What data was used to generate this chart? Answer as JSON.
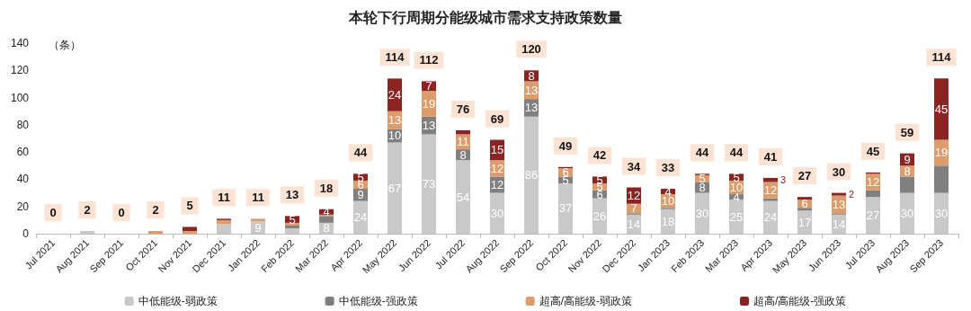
{
  "chart_data": {
    "type": "bar",
    "title": "本轮下行周期分能级城市需求支持政策数量",
    "ylabel": "（条）",
    "stacked": true,
    "legend": "bottom",
    "grid": false,
    "categories": [
      "Jul 2021",
      "Aug 2021",
      "Sep 2021",
      "Oct 2021",
      "Nov 2021",
      "Dec 2021",
      "Jan 2022",
      "Feb 2022",
      "Mar 2022",
      "Apr 2022",
      "May 2022",
      "Jun 2022",
      "Jul 2022",
      "Aug 2022",
      "Sep 2022",
      "Oct 2022",
      "Nov 2022",
      "Dec 2022",
      "Jan 2023",
      "Feb 2023",
      "Mar 2023",
      "Apr 2023",
      "May 2023",
      "Jun 2023",
      "Jul 2023",
      "Aug 2023",
      "Sep 2023"
    ],
    "ylim": [
      0,
      140
    ],
    "yticks": [
      0,
      20,
      40,
      60,
      80,
      100,
      120,
      140
    ],
    "series": [
      {
        "name": "中低能级-弱政策",
        "color": "#c9c9c9",
        "values": [
          0,
          2,
          0,
          0,
          0,
          7,
          9,
          4,
          8,
          24,
          67,
          73,
          54,
          30,
          86,
          37,
          26,
          14,
          18,
          30,
          25,
          24,
          17,
          14,
          27,
          30,
          30
        ],
        "value_labels": [
          null,
          null,
          null,
          null,
          null,
          null,
          "9",
          null,
          "8",
          "24",
          "67",
          "73",
          "54",
          "30",
          "86",
          "37",
          "26",
          "14",
          "18",
          "30",
          "25",
          "24",
          "17",
          "14",
          "27",
          "30",
          "30"
        ]
      },
      {
        "name": "中低能级-强政策",
        "color": "#808080",
        "values": [
          0,
          0,
          0,
          0,
          0,
          0,
          0,
          2,
          5,
          9,
          10,
          13,
          8,
          12,
          13,
          5,
          6,
          1,
          1,
          8,
          4,
          2,
          2,
          1,
          5,
          12,
          20
        ],
        "value_labels": [
          null,
          null,
          null,
          null,
          null,
          null,
          null,
          null,
          null,
          "9",
          "10",
          "13",
          "8",
          "12",
          "13",
          "5",
          "6",
          null,
          null,
          "8",
          "4",
          null,
          null,
          null,
          null,
          null,
          null
        ]
      },
      {
        "name": "超高/高能级-弱政策",
        "color": "#dd9c6c",
        "values": [
          0,
          0,
          0,
          2,
          2,
          3,
          2,
          2,
          1,
          6,
          13,
          19,
          11,
          12,
          13,
          6,
          5,
          7,
          10,
          5,
          10,
          12,
          6,
          13,
          12,
          8,
          19
        ],
        "value_labels": [
          null,
          null,
          null,
          null,
          null,
          null,
          null,
          null,
          null,
          "6",
          "13",
          "19",
          "11",
          "12",
          "13",
          "6",
          "5",
          "7",
          "10",
          "5",
          "10",
          "12",
          "6",
          "13",
          "12",
          "8",
          "19"
        ]
      },
      {
        "name": "超高/高能级-强政策",
        "color": "#8b2323",
        "values": [
          0,
          0,
          0,
          0,
          3,
          1,
          0,
          5,
          4,
          5,
          24,
          7,
          3,
          15,
          8,
          1,
          5,
          12,
          4,
          1,
          5,
          3,
          2,
          2,
          1,
          9,
          45
        ],
        "value_labels": [
          null,
          null,
          null,
          null,
          null,
          null,
          null,
          "5",
          "4",
          "5",
          "24",
          "7",
          null,
          "15",
          "8",
          null,
          "5",
          "12",
          "4",
          null,
          "5",
          "3",
          null,
          "2",
          null,
          "9",
          "45"
        ]
      }
    ],
    "totals": [
      "0",
      "2",
      "0",
      "2",
      "5",
      "11",
      "11",
      "13",
      "18",
      "44",
      "114",
      "112",
      "76",
      "69",
      "120",
      "49",
      "42",
      "34",
      "33",
      "44",
      "44",
      "41",
      "27",
      "30",
      "45",
      "59",
      "114"
    ]
  }
}
